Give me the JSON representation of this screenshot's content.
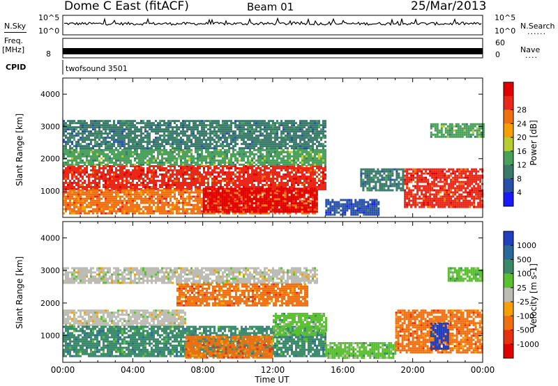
{
  "header": {
    "title": "Dome C East (fitACF)",
    "beam": "Beam 01",
    "date": "25/Mar/2013"
  },
  "status_panels": {
    "nsky_label": "N.Sky",
    "nsearch_label": "N.Search",
    "freq_label": "Freq.",
    "freq_unit": "[MHz]",
    "nave_label": "Nave",
    "cpid_label": "CPID",
    "cpid_value": "twofsound 3501",
    "noise_ticks": [
      "10^5",
      "10^0"
    ],
    "freq_ticks": [
      "8"
    ],
    "nave_ticks": [
      "60",
      "0"
    ],
    "dotted": "......",
    "dotted_short": "...."
  },
  "chart_data": [
    {
      "type": "heatmap",
      "panel": "power",
      "ylabel": "Slant Range [km]",
      "xlabel": "",
      "xlim": [
        0,
        24
      ],
      "ylim": [
        180,
        4500
      ],
      "y_ticks": [
        "1000",
        "2000",
        "3000",
        "4000"
      ],
      "colorbar_label": "Power [dB]",
      "colorbar_ticks": [
        "4",
        "8",
        "12",
        "16",
        "20",
        "24",
        "28"
      ],
      "colors": [
        "#1a1aff",
        "#2850a8",
        "#3a7a6a",
        "#49a05a",
        "#b6cc30",
        "#f5a000",
        "#f07010",
        "#e82818",
        "#e00000"
      ],
      "bands": [
        {
          "t0": 0.0,
          "t1": 15.0,
          "r0": 1050,
          "r1": 1800,
          "level": 7
        },
        {
          "t0": 0.0,
          "t1": 14.5,
          "r0": 300,
          "r1": 1050,
          "level": 6
        },
        {
          "t0": 8.0,
          "t1": 14.5,
          "r0": 350,
          "r1": 1100,
          "level": 8
        },
        {
          "t0": 0.0,
          "t1": 15.0,
          "r0": 1800,
          "r1": 2300,
          "level": 3
        },
        {
          "t0": 0.0,
          "t1": 15.0,
          "r0": 2300,
          "r1": 3200,
          "level": 2
        },
        {
          "t0": 15.0,
          "t1": 18.0,
          "r0": 250,
          "r1": 750,
          "level": 1
        },
        {
          "t0": 17.0,
          "t1": 19.5,
          "r0": 1000,
          "r1": 1700,
          "level": 2
        },
        {
          "t0": 19.5,
          "t1": 24.0,
          "r0": 500,
          "r1": 1700,
          "level": 7
        },
        {
          "t0": 21.0,
          "t1": 24.0,
          "r0": 2700,
          "r1": 3100,
          "level": 3
        }
      ]
    },
    {
      "type": "heatmap",
      "panel": "velocity",
      "ylabel": "Slant Range [km]",
      "xlabel": "Time UT",
      "xlim": [
        0,
        24
      ],
      "ylim": [
        180,
        4500
      ],
      "x_ticks": [
        "00:00",
        "04:00",
        "08:00",
        "12:00",
        "16:00",
        "20:00",
        "00:00"
      ],
      "y_ticks": [
        "1000",
        "2000",
        "3000",
        "4000"
      ],
      "colorbar_label": "Velocity [m s-1]",
      "colorbar_ticks": [
        "1000",
        "500",
        "100",
        "25",
        "-25",
        "-100",
        "-500",
        "-1000"
      ],
      "colors": [
        "#2040c0",
        "#2a6a9a",
        "#3a8a6a",
        "#5ac030",
        "#bcbcb4",
        "#f5a000",
        "#f07010",
        "#e83010",
        "#e00000"
      ],
      "bands": [
        {
          "t0": 0.0,
          "t1": 7.0,
          "r0": 1300,
          "r1": 1800,
          "level": 4
        },
        {
          "t0": 0.0,
          "t1": 15.0,
          "r0": 400,
          "r1": 1300,
          "level": 2
        },
        {
          "t0": 7.0,
          "t1": 12.0,
          "r0": 300,
          "r1": 1000,
          "level": 6
        },
        {
          "t0": 12.0,
          "t1": 15.0,
          "r0": 1000,
          "r1": 1700,
          "level": 3
        },
        {
          "t0": 0.0,
          "t1": 14.5,
          "r0": 2600,
          "r1": 3100,
          "level": 4
        },
        {
          "t0": 6.5,
          "t1": 14.0,
          "r0": 1900,
          "r1": 2600,
          "level": 6
        },
        {
          "t0": 15.0,
          "t1": 19.0,
          "r0": 300,
          "r1": 800,
          "level": 3
        },
        {
          "t0": 19.0,
          "t1": 24.0,
          "r0": 500,
          "r1": 1800,
          "level": 6
        },
        {
          "t0": 21.0,
          "t1": 22.0,
          "r0": 600,
          "r1": 1400,
          "level": 0
        },
        {
          "t0": 22.0,
          "t1": 24.0,
          "r0": 2700,
          "r1": 3100,
          "level": 3
        }
      ]
    }
  ]
}
